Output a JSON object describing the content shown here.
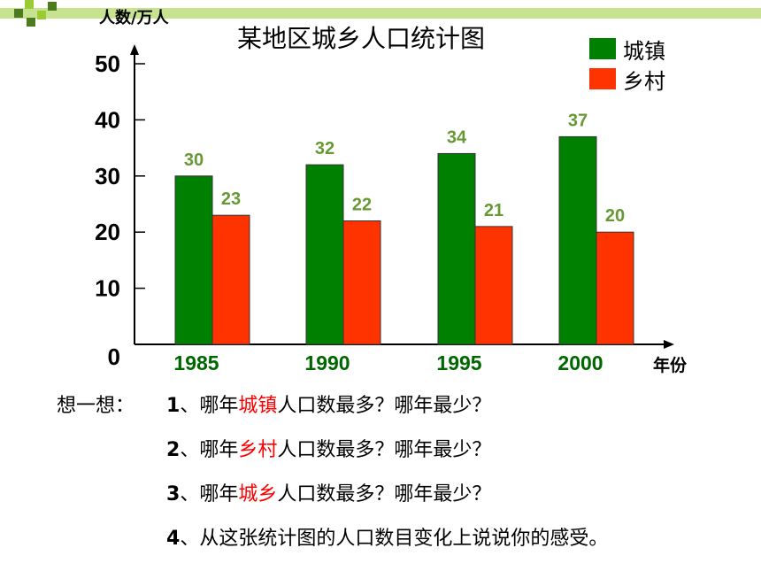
{
  "slide": {
    "prompt_prefix": "想一想：",
    "questions": [
      {
        "num": "1",
        "sep": "、",
        "before": "哪年",
        "highlight": "城镇",
        "after": "人口数最多？哪年最少？"
      },
      {
        "num": "2",
        "sep": "、",
        "before": "哪年",
        "highlight": "乡村",
        "after": "人口数最多？哪年最少？"
      },
      {
        "num": "3",
        "sep": "、",
        "before": "哪年",
        "highlight": "城乡",
        "after": "人口数最多？哪年最少？"
      },
      {
        "num": "4",
        "sep": "、",
        "before": "从这张统计图的人口数目变化上说说你的感受。",
        "highlight": "",
        "after": ""
      }
    ],
    "highlight_color": "#ff0000",
    "deco_colors": [
      "#99cc33",
      "#4d7a1f"
    ]
  },
  "chart_data": {
    "type": "bar",
    "title": "某地区城乡人口统计图",
    "ylabel": "人数/万人",
    "xlabel": "年份",
    "categories": [
      "1985",
      "1990",
      "1995",
      "2000"
    ],
    "ylim": [
      0,
      50
    ],
    "yticks": [
      0,
      10,
      20,
      30,
      40,
      50
    ],
    "legend_position": "top-right",
    "series": [
      {
        "name": "城镇",
        "color": "#008000",
        "values": [
          30,
          32,
          34,
          37
        ]
      },
      {
        "name": "乡村",
        "color": "#ff3300",
        "values": [
          23,
          22,
          21,
          20
        ]
      }
    ],
    "label_color": "#669933"
  }
}
